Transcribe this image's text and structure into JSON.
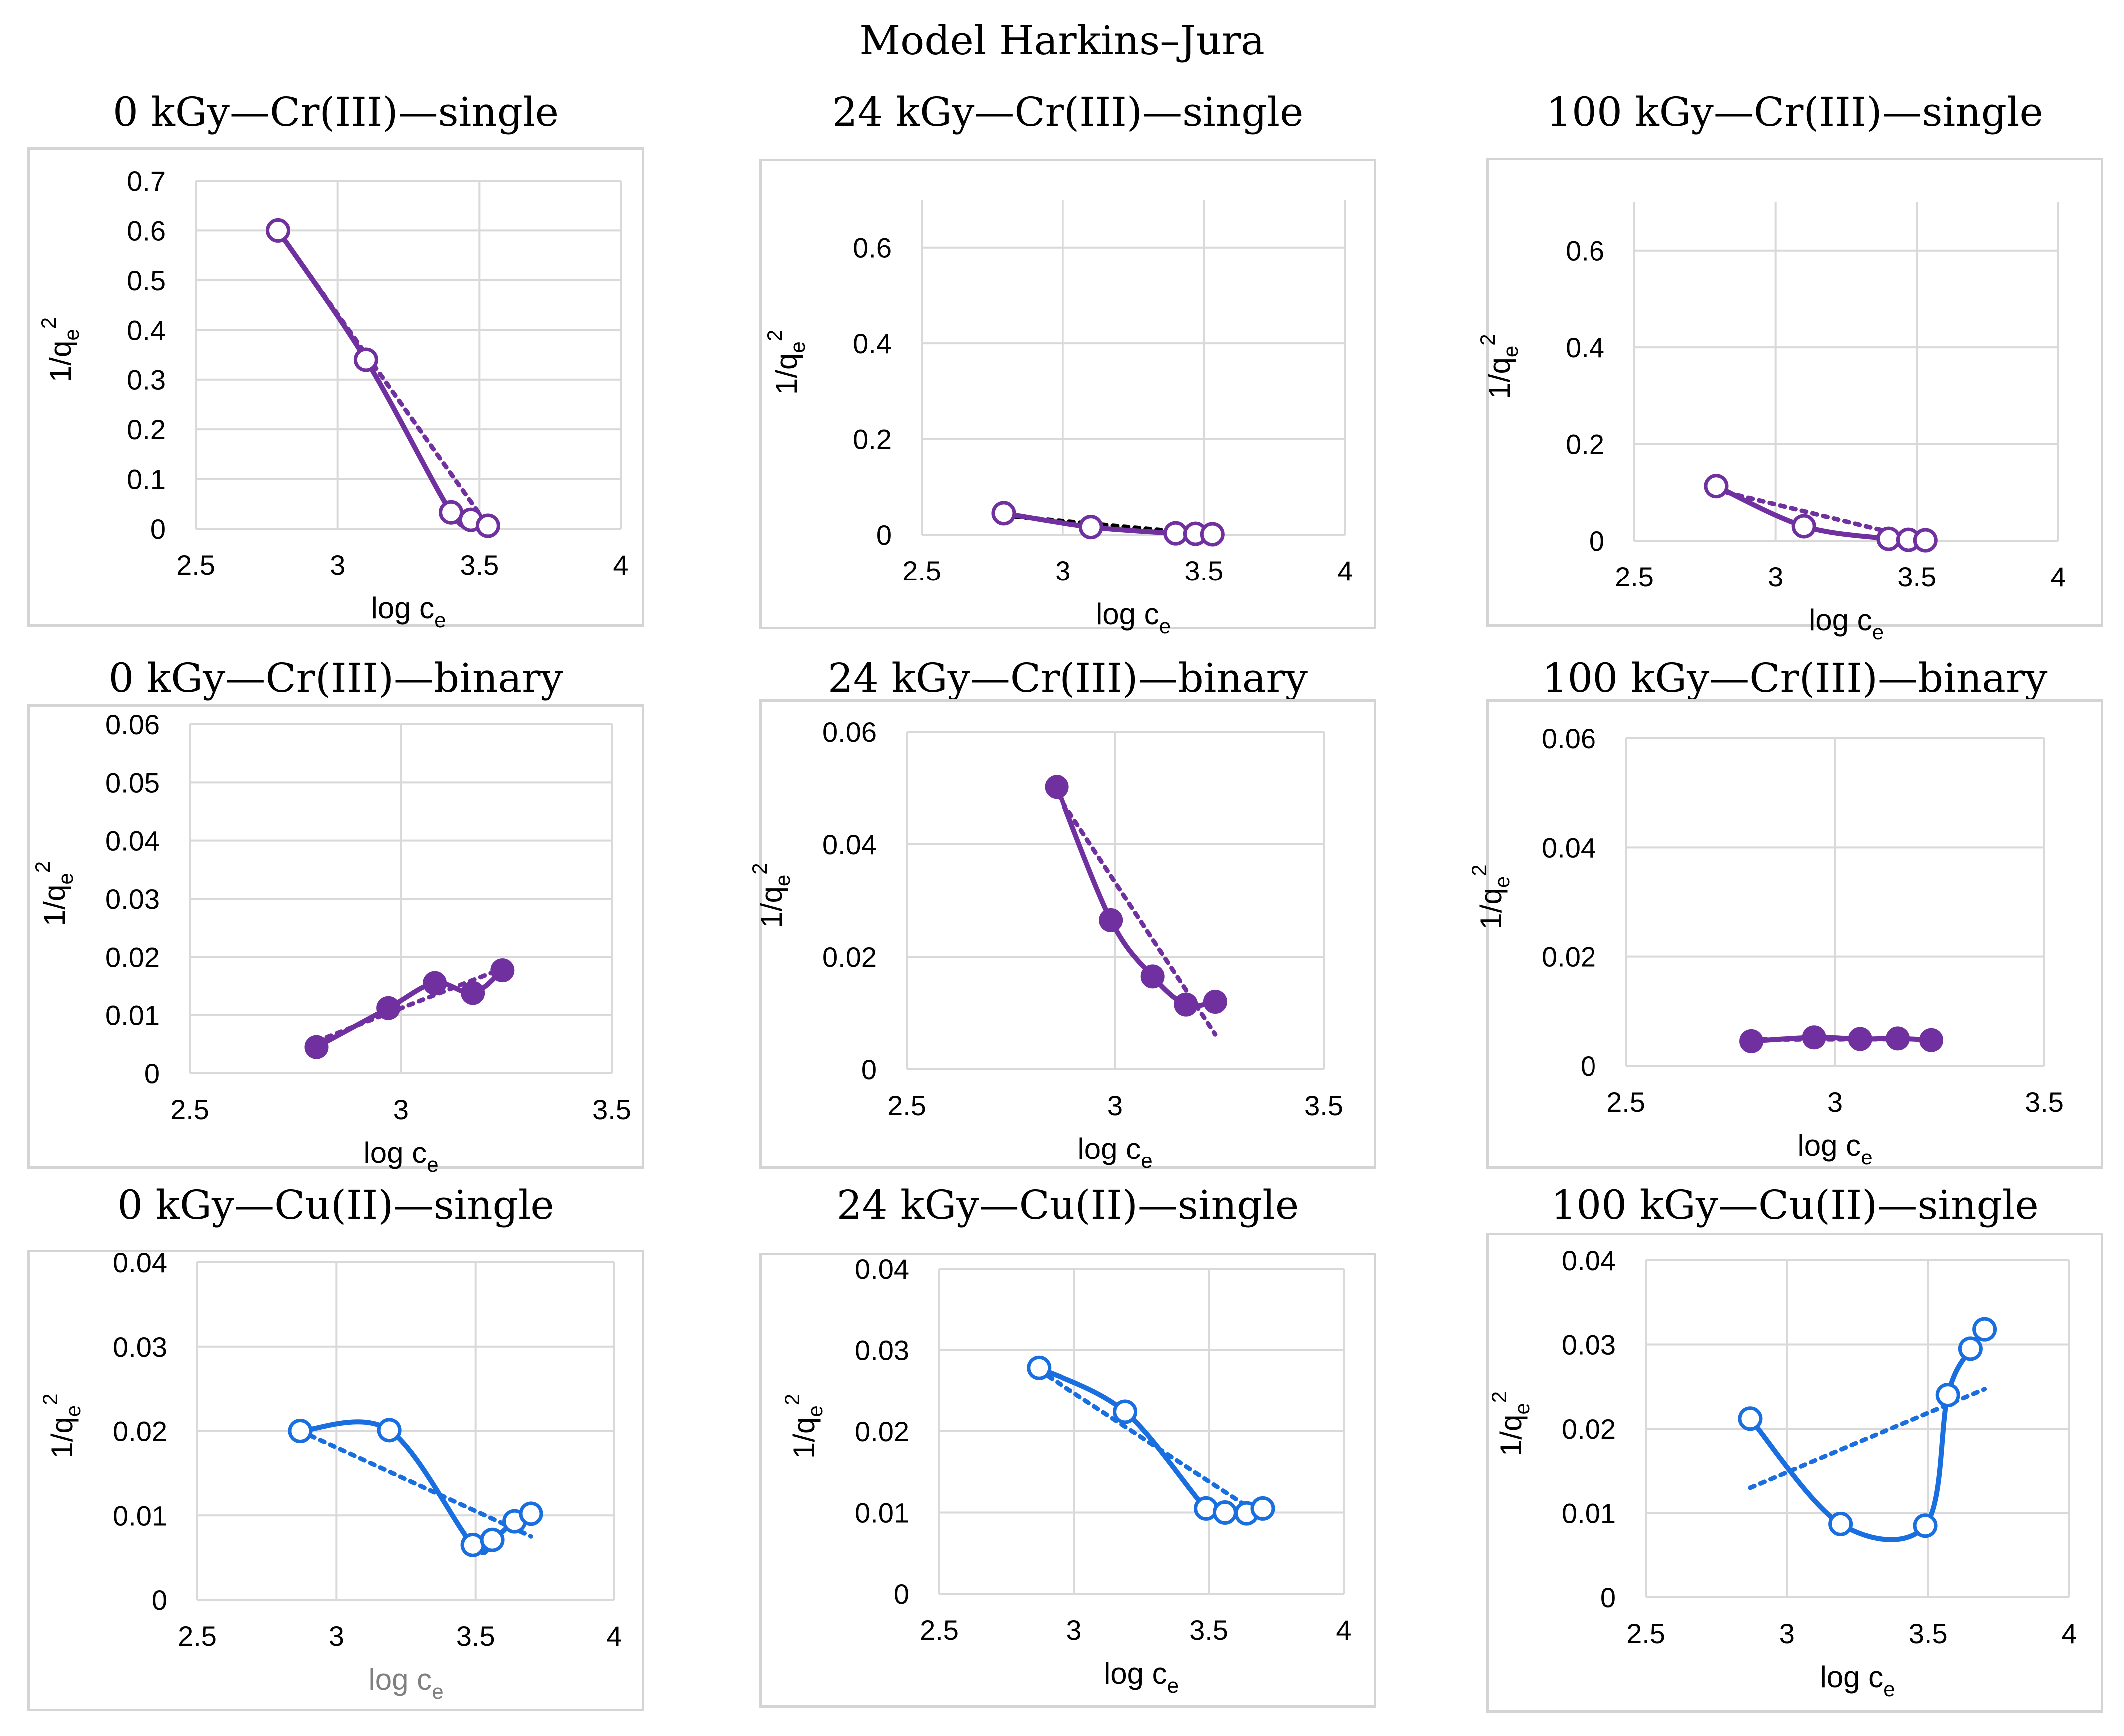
{
  "figure": {
    "title": "Model Harkins–Jura",
    "colors": {
      "purple": "#7030a0",
      "blue": "#1a6fe0",
      "black": "#000000",
      "grid": "#d9d9d9",
      "gray_label": "#808080"
    }
  },
  "chart_data": [
    {
      "type": "scatter",
      "title": "0 kGy—Cr(III)—single",
      "xlabel": "log c",
      "xlabel_sub": "e",
      "ylabel": "1/q",
      "ylabel_sub": "e",
      "ylabel_sup": "2",
      "xlim": [
        2.5,
        4
      ],
      "ylim": [
        0,
        0.7
      ],
      "xticks": [
        "2.5",
        "3",
        "3.5",
        "4"
      ],
      "yticks": [
        "0",
        "0.1",
        "0.2",
        "0.3",
        "0.4",
        "0.5",
        "0.6",
        "0.7"
      ],
      "series": [
        {
          "name": "data",
          "marker": "open-circle",
          "color": "purple",
          "x": [
            2.79,
            3.1,
            3.4,
            3.47,
            3.53
          ],
          "y": [
            0.6,
            0.34,
            0.033,
            0.018,
            0.006
          ]
        }
      ],
      "trendline": {
        "color": "purple",
        "x": [
          2.79,
          3.53
        ],
        "y": [
          0.6,
          0.006
        ]
      }
    },
    {
      "type": "scatter",
      "title": "24 kGy—Cr(III)—single",
      "xlabel": "log c",
      "xlabel_sub": "e",
      "ylabel": "1/q",
      "ylabel_sub": "e",
      "ylabel_sup": "2",
      "xlim": [
        2.5,
        4
      ],
      "ylim": [
        0,
        0.7
      ],
      "xticks": [
        "2.5",
        "3",
        "3.5",
        "4"
      ],
      "yticks": [
        "0",
        "0.2",
        "0.4",
        "0.6"
      ],
      "series": [
        {
          "name": "data",
          "marker": "open-circle",
          "color": "purple",
          "x": [
            2.79,
            3.1,
            3.4,
            3.47,
            3.53
          ],
          "y": [
            0.045,
            0.016,
            0.003,
            0.002,
            0.001
          ]
        }
      ],
      "trendline": {
        "color": "black",
        "x": [
          2.79,
          3.53
        ],
        "y": [
          0.04,
          0.0
        ]
      }
    },
    {
      "type": "scatter",
      "title": "100 kGy—Cr(III)—single",
      "xlabel": "log c",
      "xlabel_sub": "e",
      "ylabel": "1/q",
      "ylabel_sub": "e",
      "ylabel_sup": "2",
      "xlim": [
        2.5,
        4
      ],
      "ylim": [
        0,
        0.7
      ],
      "xticks": [
        "2.5",
        "3",
        "3.5",
        "4"
      ],
      "yticks": [
        "0",
        "0.2",
        "0.4",
        "0.6"
      ],
      "series": [
        {
          "name": "data",
          "marker": "open-circle",
          "color": "purple",
          "x": [
            2.79,
            3.1,
            3.4,
            3.47,
            3.53
          ],
          "y": [
            0.113,
            0.03,
            0.004,
            0.002,
            0.001
          ]
        }
      ],
      "trendline": {
        "color": "purple",
        "x": [
          2.79,
          3.53
        ],
        "y": [
          0.105,
          0.0
        ]
      }
    },
    {
      "type": "scatter",
      "title": "0 kGy—Cr(III)—binary",
      "xlabel": "log c",
      "xlabel_sub": "e",
      "ylabel": "1/q",
      "ylabel_sub": "e",
      "ylabel_sup": "2",
      "xlim": [
        2.5,
        3.5
      ],
      "ylim": [
        0,
        0.06
      ],
      "xticks": [
        "2.5",
        "3",
        "3.5"
      ],
      "yticks": [
        "0",
        "0.01",
        "0.02",
        "0.03",
        "0.04",
        "0.05",
        "0.06"
      ],
      "series": [
        {
          "name": "data",
          "marker": "filled-circle",
          "color": "purple",
          "x": [
            2.8,
            2.97,
            3.08,
            3.17,
            3.24
          ],
          "y": [
            0.0045,
            0.0112,
            0.0155,
            0.0138,
            0.0177
          ]
        }
      ],
      "trendline": {
        "color": "purple",
        "x": [
          2.8,
          3.24
        ],
        "y": [
          0.0055,
          0.018
        ]
      }
    },
    {
      "type": "scatter",
      "title": "24 kGy—Cr(III)—binary",
      "xlabel": "log c",
      "xlabel_sub": "e",
      "ylabel": "1/q",
      "ylabel_sub": "e",
      "ylabel_sup": "2",
      "xlim": [
        2.5,
        3.5
      ],
      "ylim": [
        0,
        0.06
      ],
      "xticks": [
        "2.5",
        "3",
        "3.5"
      ],
      "yticks": [
        "0",
        "0.02",
        "0.04",
        "0.06"
      ],
      "series": [
        {
          "name": "data",
          "marker": "filled-circle",
          "color": "purple",
          "x": [
            2.86,
            2.99,
            3.09,
            3.17,
            3.24
          ],
          "y": [
            0.0502,
            0.0265,
            0.0165,
            0.0115,
            0.012
          ]
        }
      ],
      "trendline": {
        "color": "purple",
        "x": [
          2.86,
          3.24
        ],
        "y": [
          0.049,
          0.0062
        ]
      }
    },
    {
      "type": "scatter",
      "title": "100 kGy—Cr(III)—binary",
      "xlabel": "log c",
      "xlabel_sub": "e",
      "ylabel": "1/q",
      "ylabel_sub": "e",
      "ylabel_sup": "2",
      "xlim": [
        2.5,
        3.5
      ],
      "ylim": [
        0,
        0.06
      ],
      "xticks": [
        "2.5",
        "3",
        "3.5"
      ],
      "yticks": [
        "0",
        "0.02",
        "0.04",
        "0.06"
      ],
      "series": [
        {
          "name": "data",
          "marker": "filled-circle",
          "color": "purple",
          "x": [
            2.8,
            2.95,
            3.06,
            3.15,
            3.23
          ],
          "y": [
            0.0045,
            0.0052,
            0.0049,
            0.005,
            0.0047
          ]
        }
      ],
      "trendline": {
        "color": "purple",
        "x": [
          2.8,
          3.23
        ],
        "y": [
          0.0048,
          0.0049
        ]
      }
    },
    {
      "type": "scatter",
      "title": "0 kGy—Cu(II)—single",
      "xlabel": "log c",
      "xlabel_sub": "e",
      "ylabel": "1/q",
      "ylabel_sub": "e",
      "ylabel_sup": "2",
      "xlim": [
        2.5,
        4
      ],
      "ylim": [
        0,
        0.04
      ],
      "xticks": [
        "2.5",
        "3",
        "3.5",
        "4"
      ],
      "yticks": [
        "0",
        "0.01",
        "0.02",
        "0.03",
        "0.04"
      ],
      "xlabel_gray": true,
      "series": [
        {
          "name": "data",
          "marker": "open-circle",
          "color": "blue",
          "x": [
            2.87,
            3.19,
            3.49,
            3.56,
            3.64,
            3.7
          ],
          "y": [
            0.02,
            0.0201,
            0.0065,
            0.0071,
            0.0093,
            0.0102
          ]
        }
      ],
      "trendline": {
        "color": "blue",
        "x": [
          2.87,
          3.7
        ],
        "y": [
          0.02,
          0.0075
        ]
      }
    },
    {
      "type": "scatter",
      "title": "24 kGy—Cu(II)—single",
      "xlabel": "log c",
      "xlabel_sub": "e",
      "ylabel": "1/q",
      "ylabel_sub": "e",
      "ylabel_sup": "2",
      "xlim": [
        2.5,
        4
      ],
      "ylim": [
        0,
        0.04
      ],
      "xticks": [
        "2.5",
        "3",
        "3.5",
        "4"
      ],
      "yticks": [
        "0",
        "0.01",
        "0.02",
        "0.03",
        "0.04"
      ],
      "series": [
        {
          "name": "data",
          "marker": "open-circle",
          "color": "blue",
          "x": [
            2.87,
            3.19,
            3.49,
            3.56,
            3.64,
            3.7
          ],
          "y": [
            0.0278,
            0.0224,
            0.0105,
            0.01,
            0.0099,
            0.0105
          ]
        }
      ],
      "trendline": {
        "color": "blue",
        "x": [
          2.87,
          3.7
        ],
        "y": [
          0.0275,
          0.0095
        ]
      }
    },
    {
      "type": "scatter",
      "title": "100 kGy—Cu(II)—single",
      "xlabel": "log c",
      "xlabel_sub": "e",
      "ylabel": "1/q",
      "ylabel_sub": "e",
      "ylabel_sup": "2",
      "xlim": [
        2.5,
        4
      ],
      "ylim": [
        0,
        0.04
      ],
      "xticks": [
        "2.5",
        "3",
        "3.5",
        "4"
      ],
      "yticks": [
        "0",
        "0.01",
        "0.02",
        "0.03",
        "0.04"
      ],
      "series": [
        {
          "name": "data",
          "marker": "open-circle",
          "color": "blue",
          "x": [
            2.87,
            3.19,
            3.49,
            3.57,
            3.65,
            3.7
          ],
          "y": [
            0.0212,
            0.0087,
            0.0085,
            0.024,
            0.0295,
            0.0318
          ]
        }
      ],
      "trendline": {
        "color": "blue",
        "x": [
          2.87,
          3.7
        ],
        "y": [
          0.013,
          0.0247
        ]
      }
    }
  ]
}
